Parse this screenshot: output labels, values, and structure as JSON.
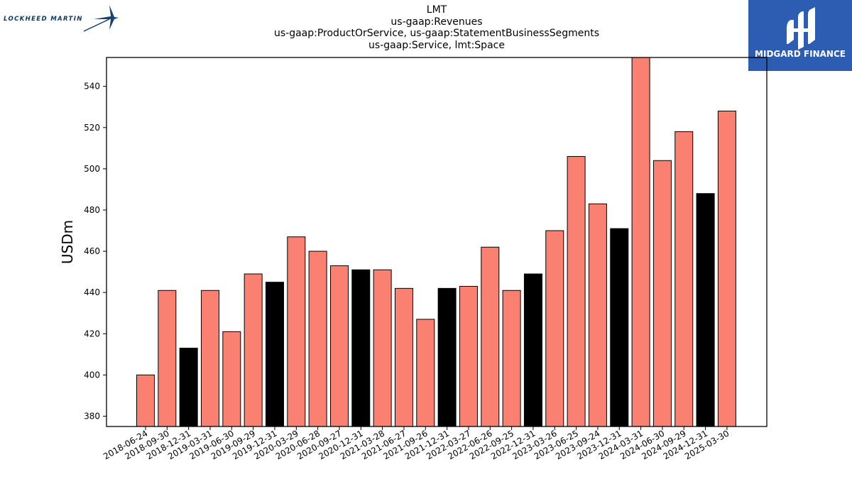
{
  "brand_left": {
    "name": "LOCKHEED MARTIN"
  },
  "brand_right": {
    "name": "MIDGARD FINANCE",
    "bg": "#2c5db3"
  },
  "chart_data": {
    "type": "bar",
    "title_lines": [
      "LMT",
      "us-gaap:Revenues",
      "us-gaap:ProductOrService, us-gaap:StatementBusinessSegments",
      "us-gaap:Service, lmt:Space"
    ],
    "xlabel": "",
    "ylabel": "USDm",
    "ylim": [
      375,
      554
    ],
    "yticks": [
      380,
      400,
      420,
      440,
      460,
      480,
      500,
      520,
      540
    ],
    "grid": false,
    "colors": {
      "quarter": "#fa8072",
      "year_end": "#000000"
    },
    "categories": [
      "2018-06-24",
      "2018-09-30",
      "2018-12-31",
      "2019-03-31",
      "2019-06-30",
      "2019-09-29",
      "2019-12-31",
      "2020-03-29",
      "2020-06-28",
      "2020-09-27",
      "2020-12-31",
      "2021-03-28",
      "2021-06-27",
      "2021-09-26",
      "2021-12-31",
      "2022-03-27",
      "2022-06-26",
      "2022-09-25",
      "2022-12-31",
      "2023-03-26",
      "2023-06-25",
      "2023-09-24",
      "2023-12-31",
      "2024-03-31",
      "2024-06-30",
      "2024-09-29",
      "2024-12-31",
      "2025-03-30"
    ],
    "values": [
      400,
      441,
      413,
      441,
      421,
      449,
      445,
      467,
      460,
      453,
      451,
      451,
      442,
      427,
      442,
      443,
      462,
      441,
      449,
      470,
      506,
      483,
      471,
      554,
      504,
      518,
      488,
      528
    ],
    "year_end": [
      false,
      false,
      true,
      false,
      false,
      false,
      true,
      false,
      false,
      false,
      true,
      false,
      false,
      false,
      true,
      false,
      false,
      false,
      true,
      false,
      false,
      false,
      true,
      false,
      false,
      false,
      true,
      false
    ]
  }
}
